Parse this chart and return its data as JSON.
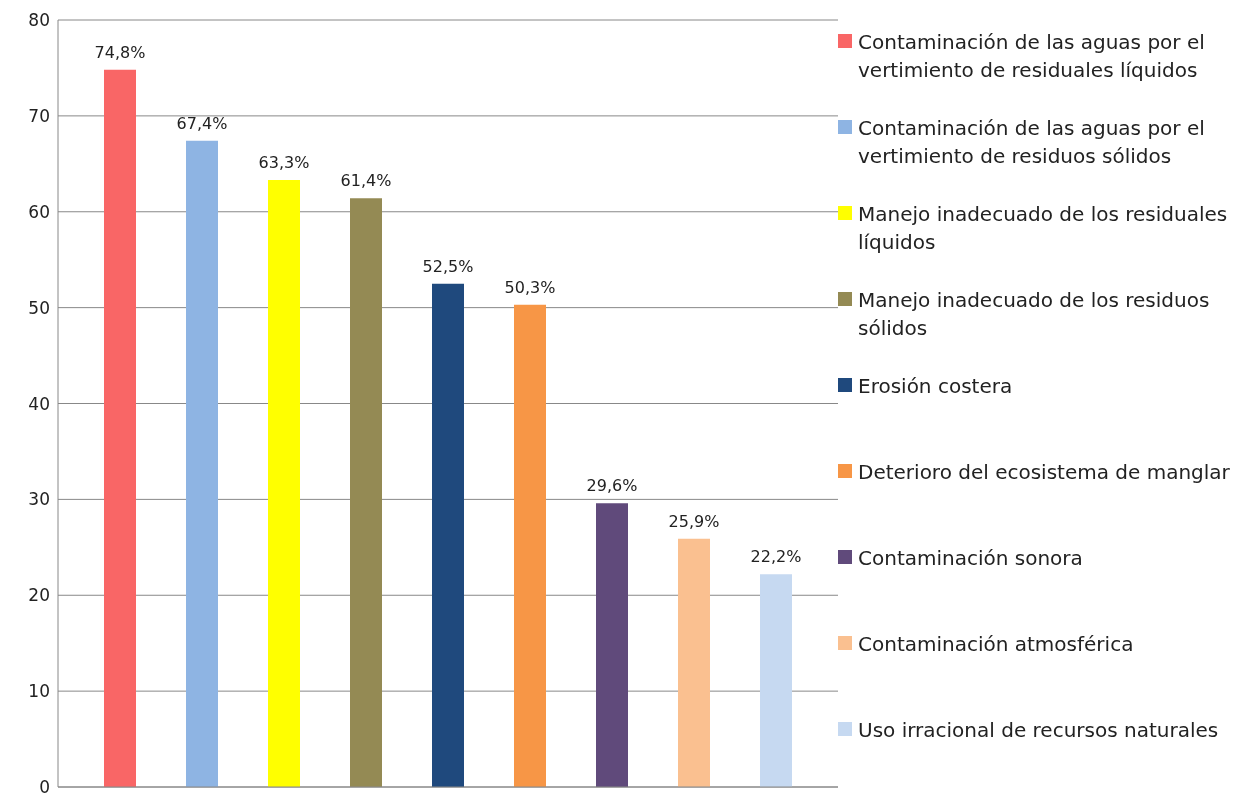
{
  "chart_data": {
    "type": "bar",
    "categories": [
      null
    ],
    "series": [
      {
        "name": "Contaminación de las aguas por el vertimiento de residuales líquidos",
        "color": "#f96666",
        "values": [
          74.8
        ],
        "value_labels": [
          "74,8%"
        ]
      },
      {
        "name": "Contaminación de las aguas por el vertimiento de residuos sólidos",
        "color": "#8eb4e3",
        "values": [
          67.4
        ],
        "value_labels": [
          "67,4%"
        ]
      },
      {
        "name": "Manejo inadecuado de los residuales líquidos",
        "color": "#ffff00",
        "values": [
          63.3
        ],
        "value_labels": [
          "63,3%"
        ]
      },
      {
        "name": "Manejo inadecuado de los residuos sólidos",
        "color": "#948a54",
        "values": [
          61.4
        ],
        "value_labels": [
          "61,4%"
        ]
      },
      {
        "name": "Erosión costera",
        "color": "#1f497d",
        "values": [
          52.5
        ],
        "value_labels": [
          "52,5%"
        ]
      },
      {
        "name": "Deterioro del ecosistema de manglar",
        "color": "#f79646",
        "values": [
          50.3
        ],
        "value_labels": [
          "50,3%"
        ]
      },
      {
        "name": "Contaminación sonora",
        "color": "#604a7b",
        "values": [
          29.6
        ],
        "value_labels": [
          "29,6%"
        ]
      },
      {
        "name": "Contaminación atmosférica",
        "color": "#fac090",
        "values": [
          25.9
        ],
        "value_labels": [
          "25,9%"
        ]
      },
      {
        "name": "Uso irracional de recursos naturales",
        "color": "#c6d9f1",
        "values": [
          22.2
        ],
        "value_labels": [
          "22,2%"
        ]
      }
    ],
    "ylim": [
      0,
      80
    ],
    "yticks": [
      0,
      10,
      20,
      30,
      40,
      50,
      60,
      70,
      80
    ],
    "grid": "y",
    "legend": "right"
  }
}
